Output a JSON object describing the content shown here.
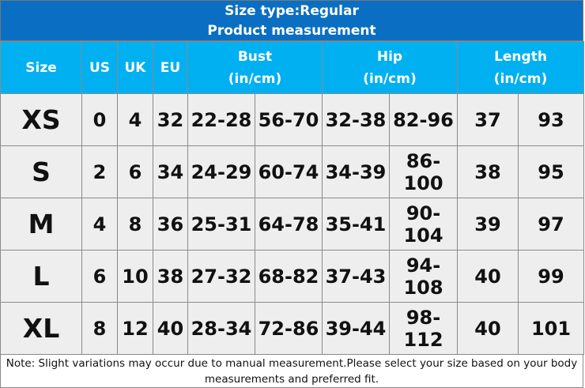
{
  "header": {
    "title": "Size type:Regular",
    "subtitle": "Product measurement"
  },
  "table": {
    "columns": [
      {
        "label": "Size",
        "span": 1
      },
      {
        "label": "US",
        "span": 1
      },
      {
        "label": "UK",
        "span": 1
      },
      {
        "label": "EU",
        "span": 1
      },
      {
        "label": "Bust",
        "unit": "(in/cm)",
        "span": 2
      },
      {
        "label": "Hip",
        "unit": "(in/cm)",
        "span": 2
      },
      {
        "label": "Length",
        "unit": "(in/cm)",
        "span": 2
      }
    ],
    "rows": [
      [
        "XS",
        "0",
        "4",
        "32",
        "22-28",
        "56-70",
        "32-38",
        "82-96",
        "37",
        "93"
      ],
      [
        "S",
        "2",
        "6",
        "34",
        "24-29",
        "60-74",
        "34-39",
        "86-100",
        "38",
        "95"
      ],
      [
        "M",
        "4",
        "8",
        "36",
        "25-31",
        "64-78",
        "35-41",
        "90-104",
        "39",
        "97"
      ],
      [
        "L",
        "6",
        "10",
        "38",
        "27-32",
        "68-82",
        "37-43",
        "94-108",
        "40",
        "99"
      ],
      [
        "XL",
        "8",
        "12",
        "40",
        "28-34",
        "72-86",
        "39-44",
        "98-112",
        "40",
        "101"
      ]
    ]
  },
  "note": "Note: Slight variations may occur due to manual measurement.Please select your size based on your body measurements and preferred fit."
}
